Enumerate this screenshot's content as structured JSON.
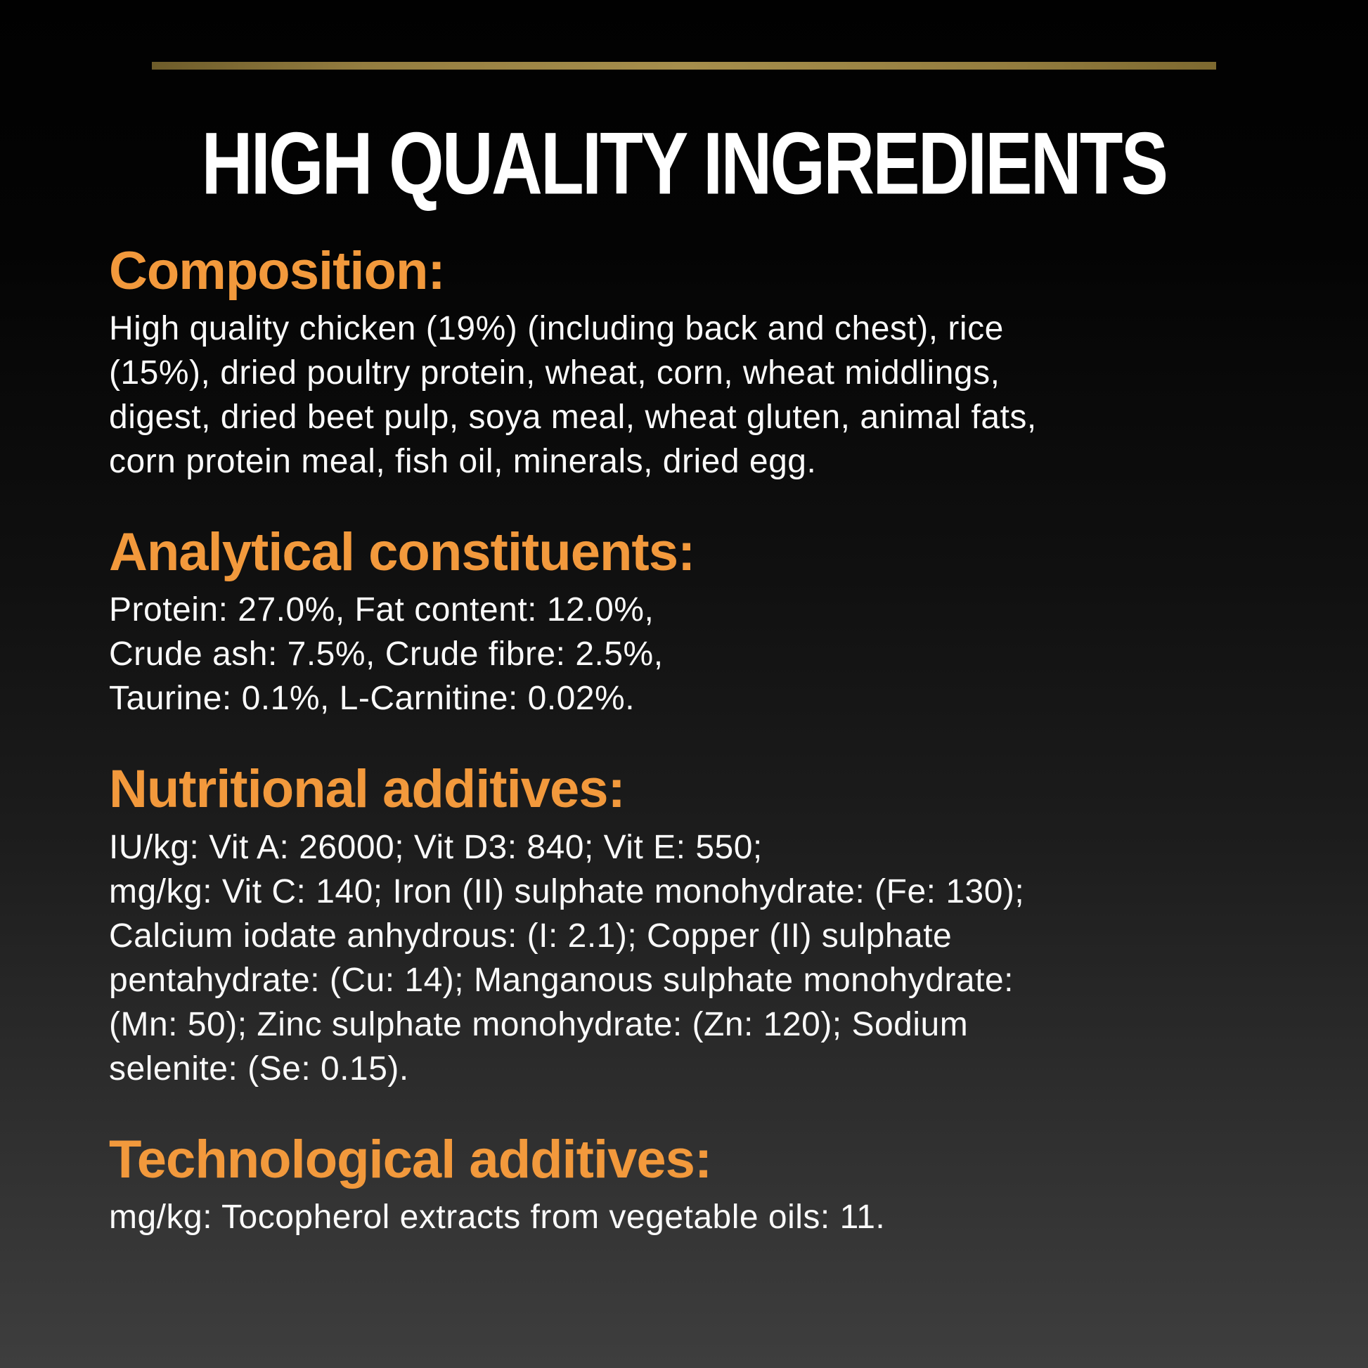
{
  "page": {
    "title": "HIGH QUALITY INGREDIENTS",
    "colors": {
      "accent": "#F2993C",
      "body_text": "#FAFAFA",
      "gold_bar": "#A68E4C",
      "background_top": "#010101",
      "background_bottom": "#3E3E3E"
    }
  },
  "sections": [
    {
      "heading": "Composition:",
      "lines": [
        "High quality chicken (19%) (including back and chest), rice",
        "(15%), dried poultry protein, wheat, corn, wheat middlings,",
        "digest, dried beet pulp, soya meal, wheat gluten, animal fats,",
        "corn protein meal, fish oil, minerals, dried egg."
      ]
    },
    {
      "heading": "Analytical constituents:",
      "lines": [
        "Protein: 27.0%, Fat content: 12.0%,",
        "Crude ash: 7.5%, Crude fibre: 2.5%,",
        "Taurine: 0.1%, L-Carnitine: 0.02%."
      ]
    },
    {
      "heading": "Nutritional additives:",
      "lines": [
        "IU/kg: Vit A: 26000; Vit D3: 840; Vit E: 550;",
        "mg/kg: Vit C: 140; Iron (II) sulphate monohydrate: (Fe: 130);",
        "Calcium iodate anhydrous: (I: 2.1); Copper (II) sulphate",
        "pentahydrate: (Cu: 14); Manganous sulphate monohydrate:",
        "(Mn: 50); Zinc sulphate monohydrate: (Zn: 120); Sodium",
        "selenite: (Se: 0.15)."
      ]
    },
    {
      "heading": "Technological additives:",
      "lines": [
        "mg/kg: Tocopherol extracts from vegetable oils: 11."
      ]
    }
  ]
}
